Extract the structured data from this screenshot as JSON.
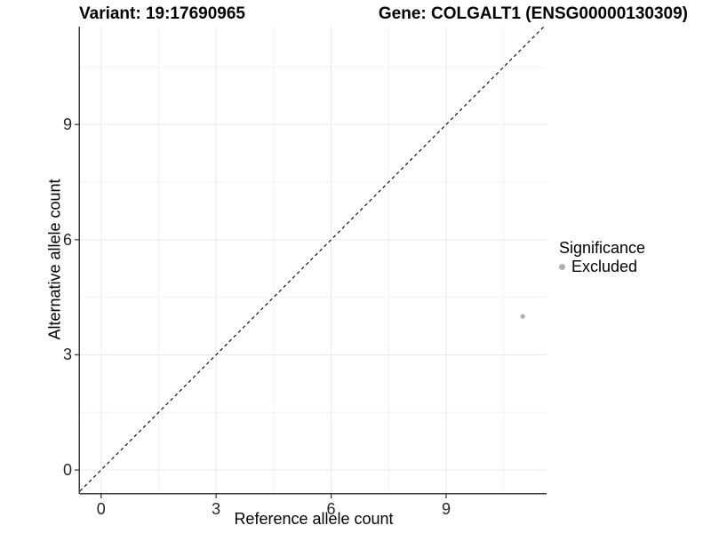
{
  "titles": {
    "variant": "Variant: 19:17690965",
    "gene": "Gene: COLGALT1 (ENSG00000130309)"
  },
  "legend": {
    "title": "Significance",
    "items": [
      {
        "label": "Excluded",
        "color": "#b0b0b0"
      }
    ]
  },
  "chart_data": {
    "type": "scatter",
    "title_left": "Variant: 19:17690965",
    "title_right": "Gene: COLGALT1 (ENSG00000130309)",
    "xlabel": "Reference allele count",
    "ylabel": "Alternative allele count",
    "xlim": [
      -0.55,
      11.62
    ],
    "ylim": [
      -0.6,
      11.55
    ],
    "x_breaks": [
      0,
      3,
      6,
      9
    ],
    "y_breaks": [
      0,
      3,
      6,
      9
    ],
    "x_minor_breaks": [
      1.5,
      4.5,
      7.5,
      10.5
    ],
    "y_minor_breaks": [
      1.5,
      4.5,
      7.5,
      10.5
    ],
    "grid": true,
    "legend_position": "right",
    "legend_title": "Significance",
    "series": [
      {
        "name": "Excluded",
        "color": "#b0b0b0",
        "points": [
          [
            11,
            4
          ]
        ]
      }
    ],
    "reference_line": {
      "kind": "identity",
      "linetype": "dashed",
      "color": "#000000"
    },
    "style": {
      "axis_line_color": "#3d3d3d",
      "tick_color": "#3d3d3d",
      "grid_major_color": "#e9e9e9",
      "grid_minor_color": "#f2f2f2",
      "point_radius_px": 2.6,
      "dash_pattern": "3.8,3.4"
    }
  }
}
